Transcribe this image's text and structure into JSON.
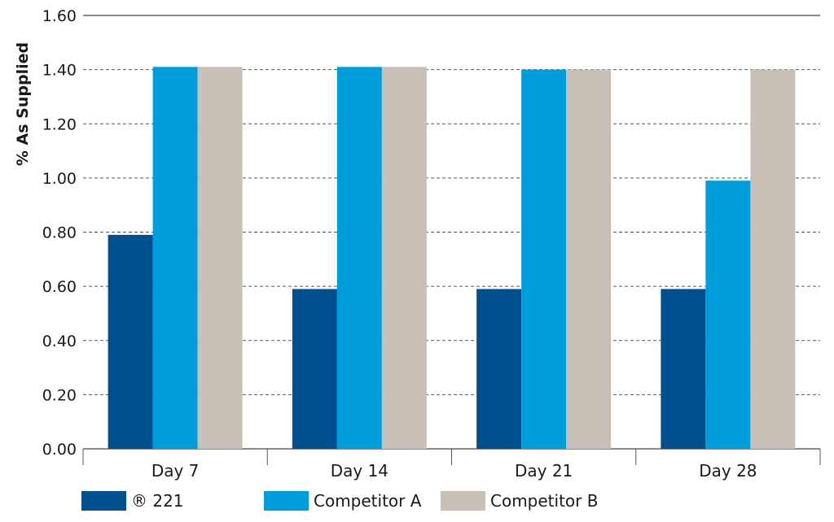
{
  "chart_data": {
    "type": "bar",
    "title": "",
    "xlabel": "",
    "ylabel": "% As Supplied",
    "ylim": [
      0,
      1.6
    ],
    "yticks": [
      "0.00",
      "0.20",
      "0.40",
      "0.60",
      "0.80",
      "1.00",
      "1.20",
      "1.40",
      "1.60"
    ],
    "grid": true,
    "legend_position": "bottom",
    "categories": [
      "Day 7",
      "Day 14",
      "Day 21",
      "Day 28"
    ],
    "series": [
      {
        "name": "® 221",
        "color": "#00508f",
        "values": [
          0.79,
          0.59,
          0.59,
          0.59
        ]
      },
      {
        "name": "Competitor A",
        "color": "#009ddc",
        "values": [
          1.41,
          1.41,
          1.4,
          0.99
        ]
      },
      {
        "name": "Competitor B",
        "color": "#c8c0b6",
        "values": [
          1.41,
          1.41,
          1.4,
          1.4
        ]
      }
    ]
  }
}
